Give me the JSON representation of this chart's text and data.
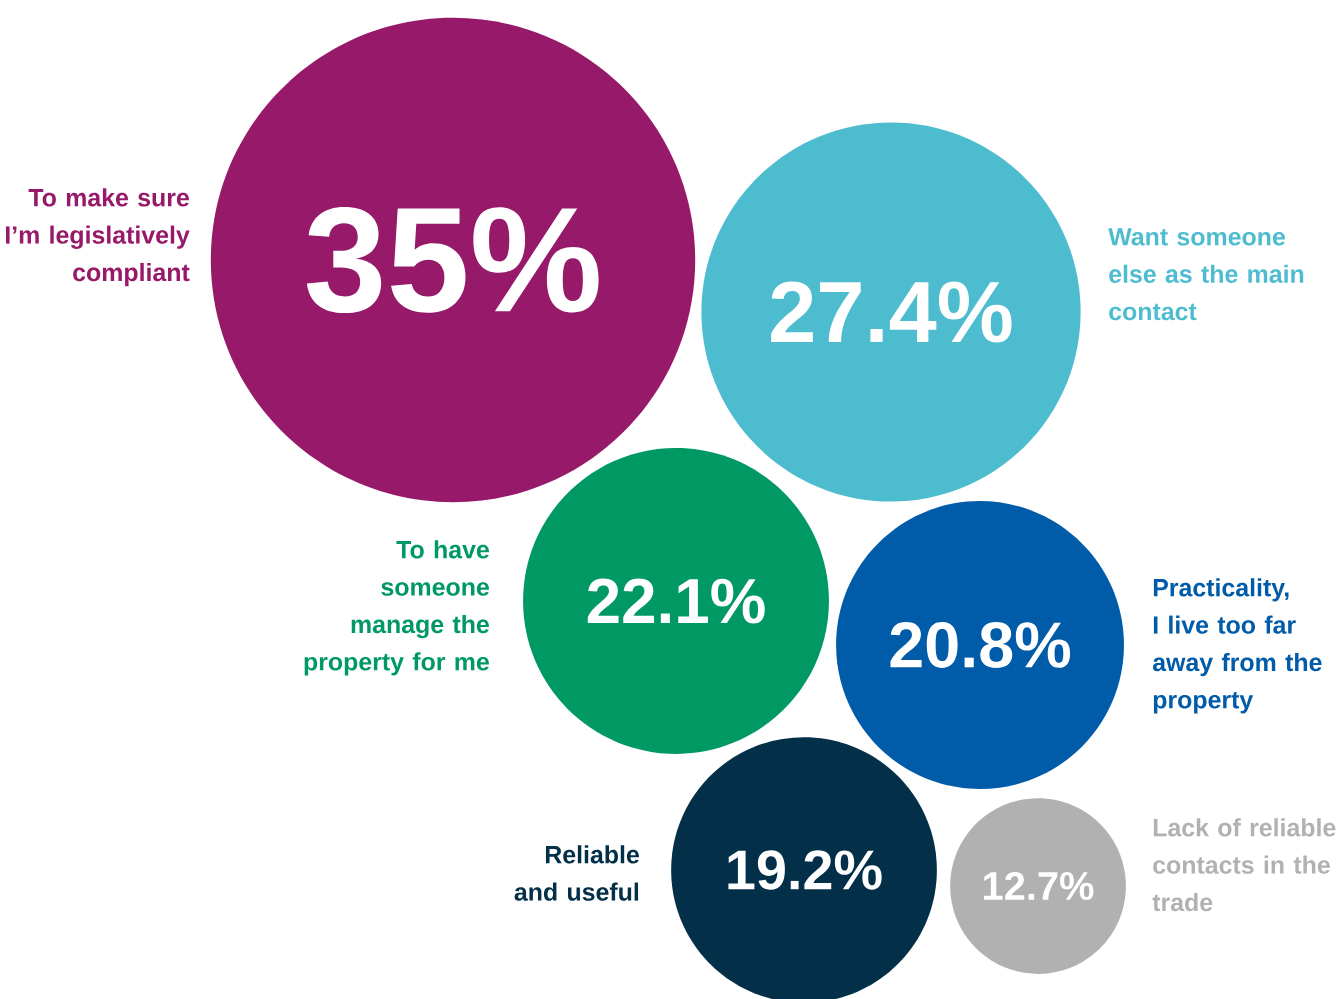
{
  "chart_data": {
    "type": "other",
    "categories": [
      "To make sure I’m legislatively compliant",
      "Want someone else as the main contact",
      "To have someone manage the property for me",
      "Practicality, I live too far away from the property",
      "Reliable and useful",
      "Lack of reliable contacts in the trade"
    ],
    "values": [
      35,
      27.4,
      22.1,
      20.8,
      19.2,
      12.7
    ],
    "value_labels": [
      "35%",
      "27.4%",
      "22.1%",
      "20.8%",
      "19.2%",
      "12.7%"
    ],
    "colors": [
      "#97196a",
      "#4dbccf",
      "#009964",
      "#005ca9",
      "#033048",
      "#b1b1b1"
    ]
  }
}
